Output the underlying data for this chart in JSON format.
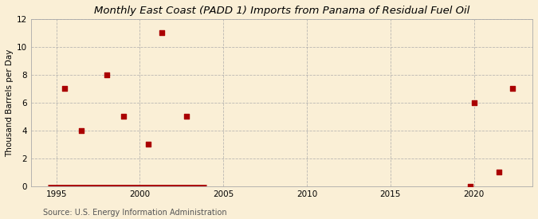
{
  "title": "Monthly East Coast (PADD 1) Imports from Panama of Residual Fuel Oil",
  "ylabel": "Thousand Barrels per Day",
  "source": "Source: U.S. Energy Information Administration",
  "background_color": "#faefd6",
  "plot_bg_color": "#faefd6",
  "scatter_x": [
    1995.5,
    1996.5,
    1998.0,
    1999.0,
    2000.5,
    2001.3,
    2002.8,
    2020.0,
    2021.5,
    2022.3
  ],
  "scatter_y": [
    7,
    4,
    8,
    5,
    3,
    11,
    5,
    6,
    1,
    7
  ],
  "line_x": [
    1994.5,
    2004.0
  ],
  "line_y": [
    0,
    0
  ],
  "near_zero_x": [
    2019.8
  ],
  "near_zero_y": [
    0
  ],
  "scatter_color": "#aa0000",
  "line_color": "#aa0000",
  "marker_size": 18,
  "xlim": [
    1993.5,
    2023.5
  ],
  "ylim": [
    0,
    12
  ],
  "xticks": [
    1995,
    2000,
    2005,
    2010,
    2015,
    2020
  ],
  "yticks": [
    0,
    2,
    4,
    6,
    8,
    10,
    12
  ],
  "title_fontsize": 9.5,
  "label_fontsize": 7.5,
  "tick_fontsize": 7.5,
  "source_fontsize": 7,
  "line_width": 3.5
}
